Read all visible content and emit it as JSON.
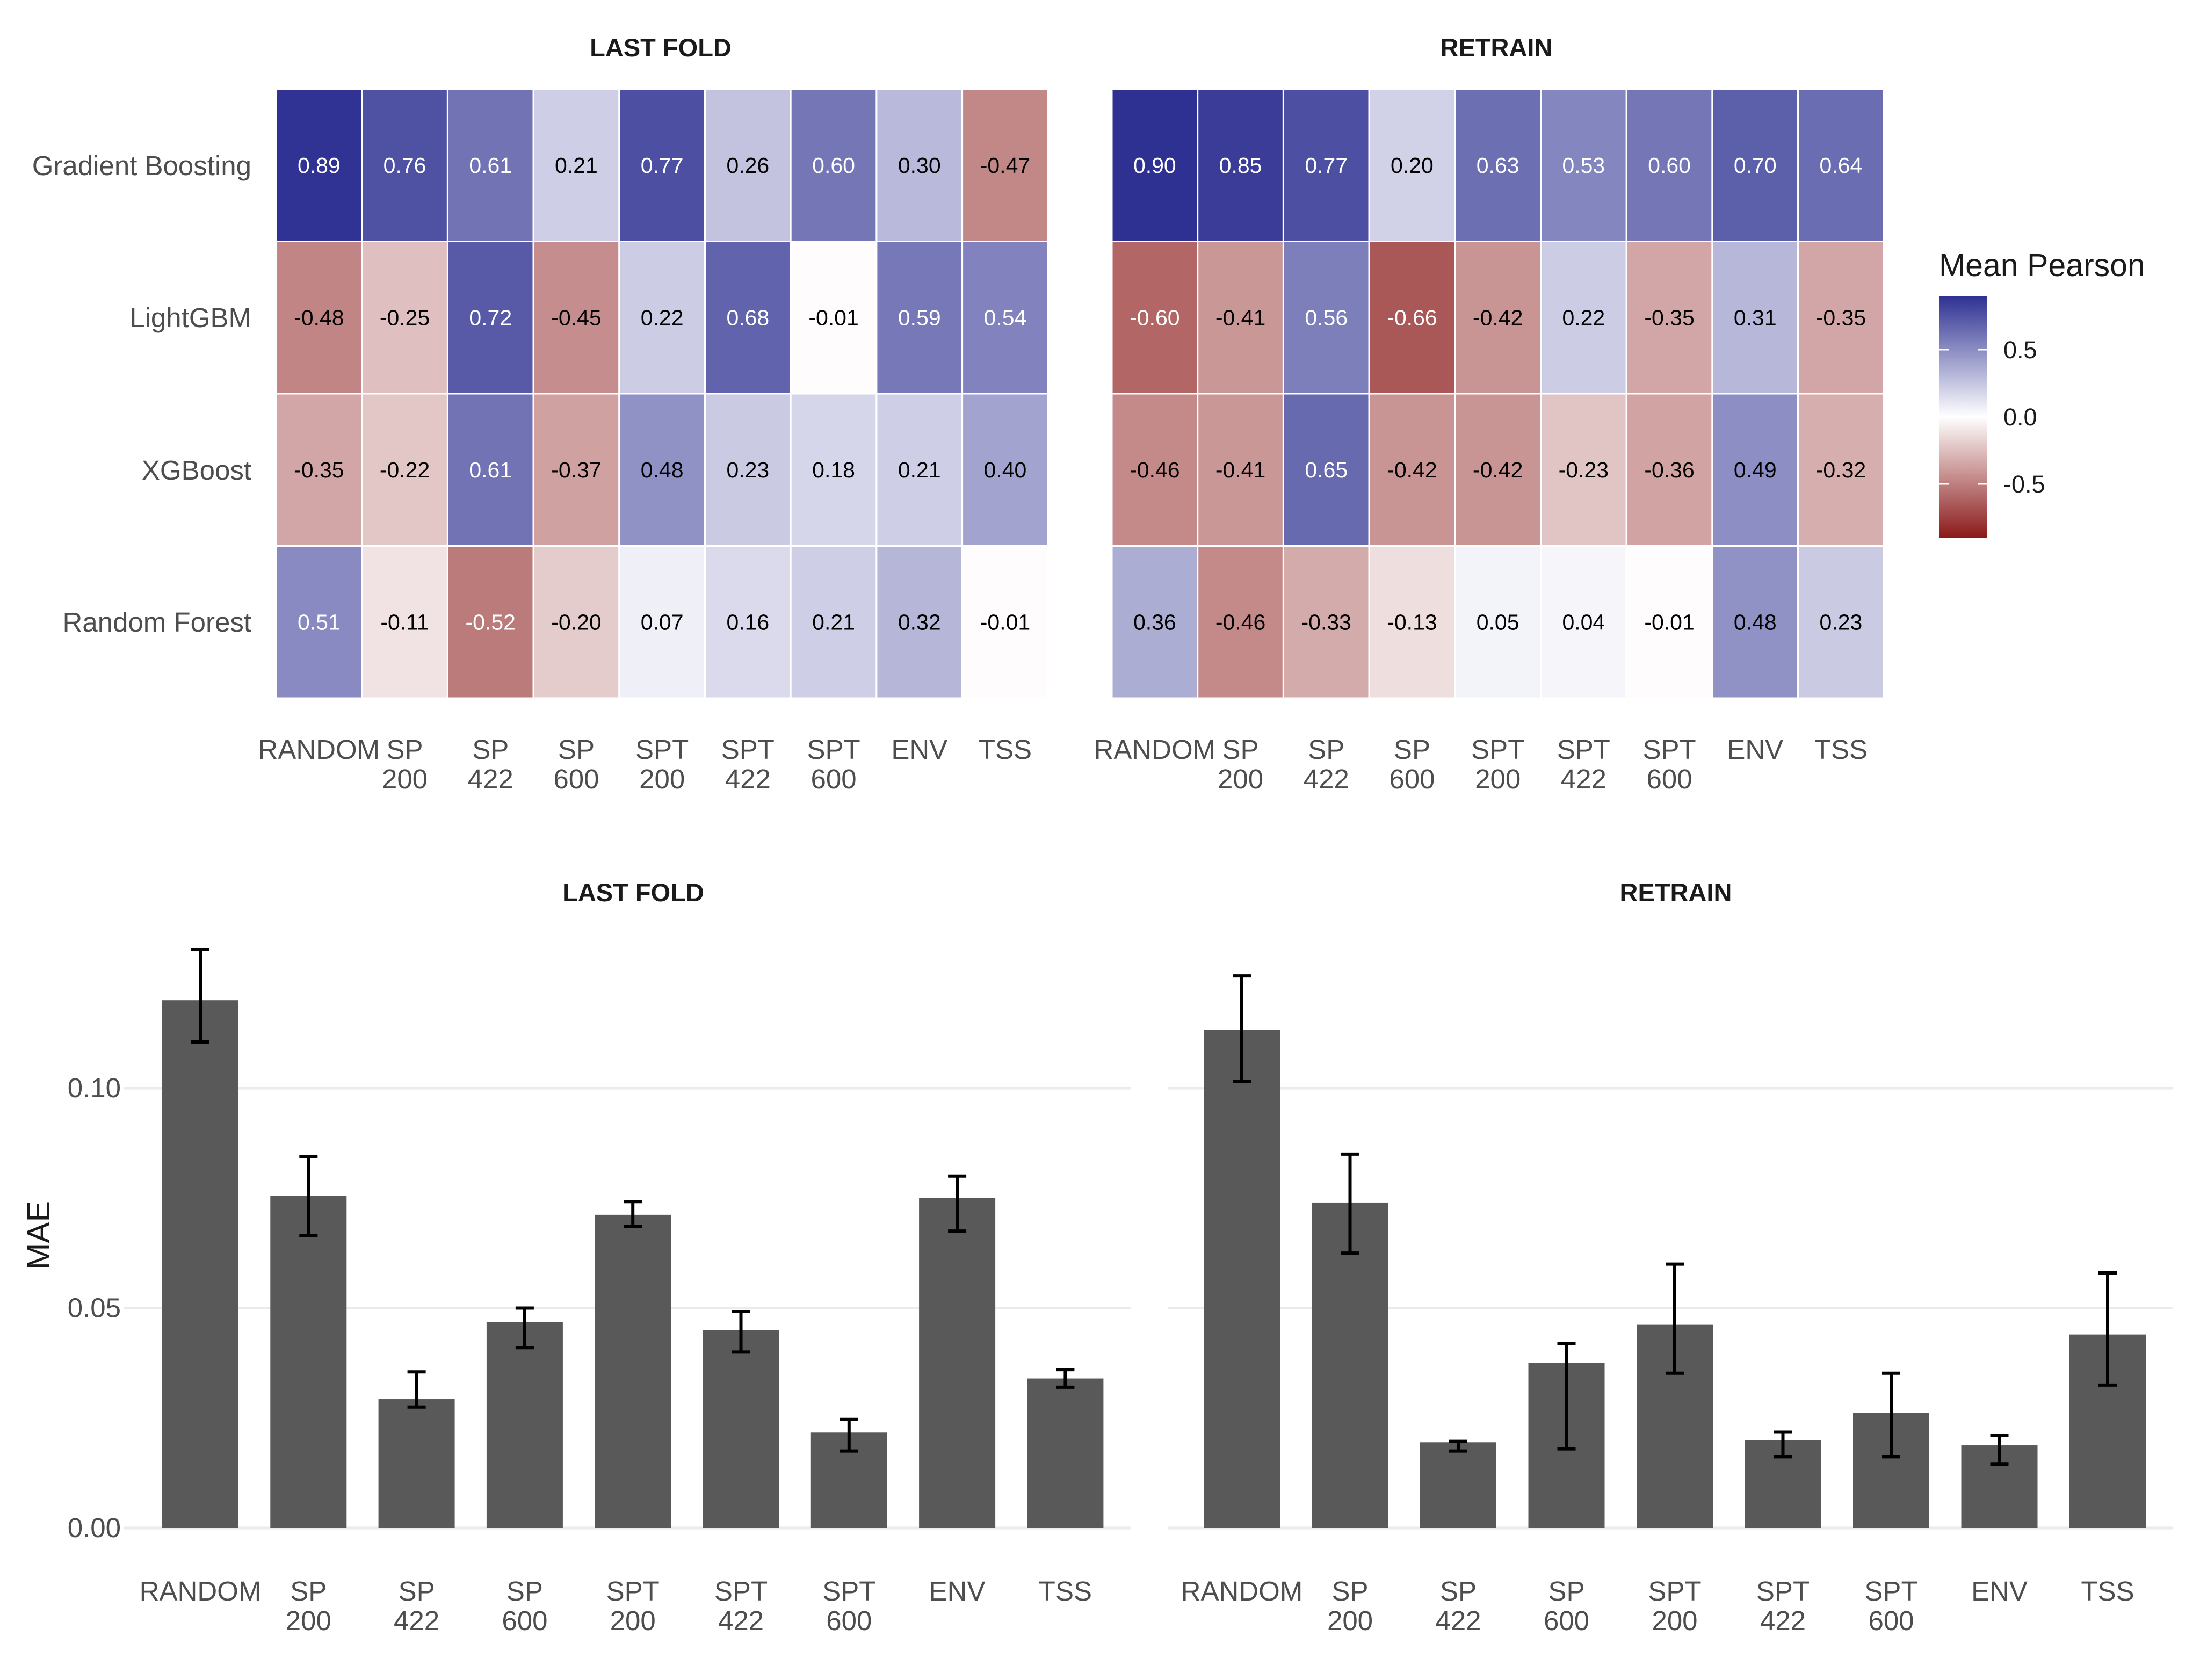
{
  "chart_data": [
    {
      "type": "heatmap",
      "title": "LAST FOLD",
      "rows": [
        "Gradient Boosting",
        "LightGBM",
        "XGBoost",
        "Random Forest"
      ],
      "columns": [
        [
          "RANDOM"
        ],
        [
          "SP",
          "200"
        ],
        [
          "SP",
          "422"
        ],
        [
          "SP",
          "600"
        ],
        [
          "SPT",
          "200"
        ],
        [
          "SPT",
          "422"
        ],
        [
          "SPT",
          "600"
        ],
        [
          "ENV"
        ],
        [
          "TSS"
        ]
      ],
      "values": [
        [
          0.89,
          0.76,
          0.61,
          0.21,
          0.77,
          0.26,
          0.6,
          0.3,
          -0.47
        ],
        [
          -0.48,
          -0.25,
          0.72,
          -0.45,
          0.22,
          0.68,
          -0.01,
          0.59,
          0.54
        ],
        [
          -0.35,
          -0.22,
          0.61,
          -0.37,
          0.48,
          0.23,
          0.18,
          0.21,
          0.4
        ],
        [
          0.51,
          -0.11,
          -0.52,
          -0.2,
          0.07,
          0.16,
          0.21,
          0.32,
          -0.01
        ]
      ]
    },
    {
      "type": "heatmap",
      "title": "RETRAIN",
      "rows": [
        "Gradient Boosting",
        "LightGBM",
        "XGBoost",
        "Random Forest"
      ],
      "columns": [
        [
          "RANDOM"
        ],
        [
          "SP",
          "200"
        ],
        [
          "SP",
          "422"
        ],
        [
          "SP",
          "600"
        ],
        [
          "SPT",
          "200"
        ],
        [
          "SPT",
          "422"
        ],
        [
          "SPT",
          "600"
        ],
        [
          "ENV"
        ],
        [
          "TSS"
        ]
      ],
      "values": [
        [
          0.9,
          0.85,
          0.77,
          0.2,
          0.63,
          0.53,
          0.6,
          0.7,
          0.64
        ],
        [
          -0.6,
          -0.41,
          0.56,
          -0.66,
          -0.42,
          0.22,
          -0.35,
          0.31,
          -0.35
        ],
        [
          -0.46,
          -0.41,
          0.65,
          -0.42,
          -0.42,
          -0.23,
          -0.36,
          0.49,
          -0.32
        ],
        [
          0.36,
          -0.46,
          -0.33,
          -0.13,
          0.05,
          0.04,
          -0.01,
          0.48,
          0.23
        ]
      ]
    },
    {
      "type": "bar",
      "title": "LAST FOLD",
      "ylabel": "MAE",
      "ylim": [
        0,
        0.132
      ],
      "yticks": [
        "0.00",
        "0.05",
        "0.10"
      ],
      "categories": [
        [
          "RANDOM"
        ],
        [
          "SP",
          "200"
        ],
        [
          "SP",
          "422"
        ],
        [
          "SP",
          "600"
        ],
        [
          "SPT",
          "200"
        ],
        [
          "SPT",
          "422"
        ],
        [
          "SPT",
          "600"
        ],
        [
          "ENV"
        ],
        [
          "TSS"
        ]
      ],
      "values": [
        0.12,
        0.0755,
        0.0293,
        0.0468,
        0.0712,
        0.045,
        0.0217,
        0.075,
        0.034
      ],
      "error_low": [
        0.1105,
        0.0665,
        0.0275,
        0.041,
        0.0685,
        0.04,
        0.0175,
        0.0675,
        0.032
      ],
      "error_high": [
        0.1315,
        0.0845,
        0.0355,
        0.05,
        0.0742,
        0.0492,
        0.0247,
        0.08,
        0.036
      ]
    },
    {
      "type": "bar",
      "title": "RETRAIN",
      "ylim": [
        0,
        0.132
      ],
      "categories": [
        [
          "RANDOM"
        ],
        [
          "SP",
          "200"
        ],
        [
          "SP",
          "422"
        ],
        [
          "SP",
          "600"
        ],
        [
          "SPT",
          "200"
        ],
        [
          "SPT",
          "422"
        ],
        [
          "SPT",
          "600"
        ],
        [
          "ENV"
        ],
        [
          "TSS"
        ]
      ],
      "values": [
        0.1132,
        0.074,
        0.0195,
        0.0375,
        0.0462,
        0.02,
        0.0262,
        0.0188,
        0.044
      ],
      "error_low": [
        0.1015,
        0.0625,
        0.0175,
        0.018,
        0.0352,
        0.0162,
        0.0162,
        0.0145,
        0.0325
      ],
      "error_high": [
        0.1255,
        0.085,
        0.0197,
        0.042,
        0.06,
        0.0218,
        0.0352,
        0.021,
        0.058
      ]
    }
  ],
  "legend": {
    "title": "Mean Pearson",
    "ticks": [
      "0.5",
      "0.0",
      "-0.5"
    ],
    "limits": [
      -0.9,
      0.9
    ],
    "colors": {
      "low": "#8b1a1a",
      "mid": "#ffffff",
      "high": "#2e3192"
    }
  }
}
